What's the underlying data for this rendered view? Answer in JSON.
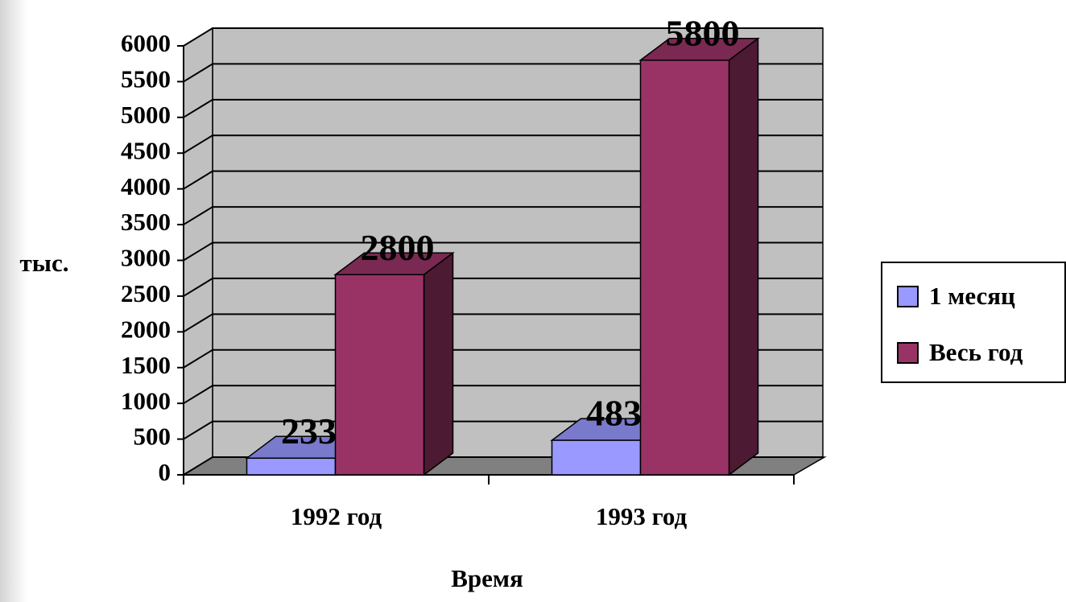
{
  "chart_data": {
    "type": "bar3d",
    "categories": [
      "1992 год",
      "1993 год"
    ],
    "series": [
      {
        "name": "1 месяц",
        "color": "#9999ff",
        "values": [
          233,
          483
        ]
      },
      {
        "name": "Весь год",
        "color": "#993366",
        "values": [
          2800,
          5800
        ]
      }
    ],
    "ylim": [
      0,
      6000
    ],
    "yticks": [
      0,
      500,
      1000,
      1500,
      2000,
      2500,
      3000,
      3500,
      4000,
      4500,
      5000,
      5500,
      6000
    ],
    "y_label": "тыс.",
    "x_label": "Время",
    "grid": true,
    "legend": "right"
  }
}
